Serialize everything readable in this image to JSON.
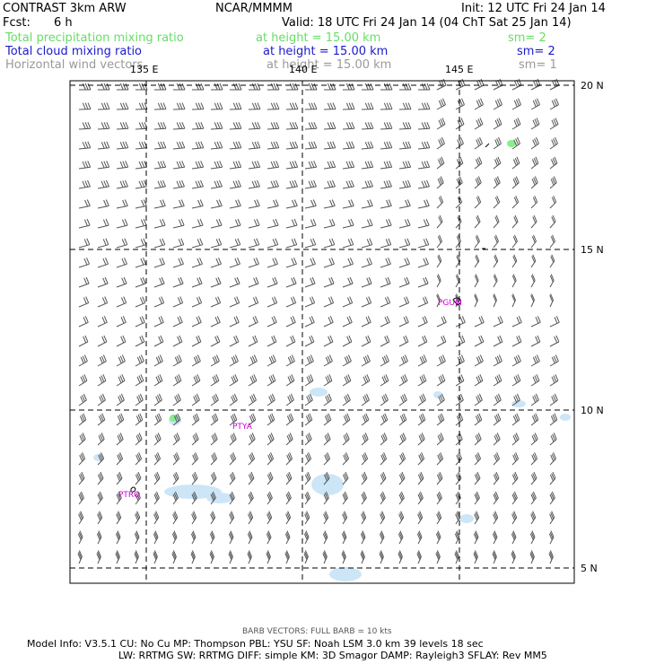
{
  "header": {
    "model_name": "CONTRAST  3km ARW",
    "center": "NCAR/MMMM",
    "init": "Init: 12 UTC Fri 24 Jan 14",
    "fcst_label": "Fcst:",
    "fcst_value": "6 h",
    "valid": "Valid: 18 UTC Fri 24 Jan 14 (04 ChT Sat 25 Jan 14)"
  },
  "fields": [
    {
      "name": "Total precipitation mixing ratio",
      "height": "at height = 15.00 km",
      "sm": "sm= 2",
      "color": "#66dd66"
    },
    {
      "name": "Total cloud mixing ratio",
      "height": "at height = 15.00 km",
      "sm": "sm= 2",
      "color": "#1a1acc"
    },
    {
      "name": "Horizontal wind vectors",
      "height": "at height = 15.00 km",
      "sm": "sm= 1",
      "color": "#999999"
    }
  ],
  "map": {
    "lon_labels": [
      "135 E",
      "140 E",
      "145 E"
    ],
    "lat_labels": [
      "20 N",
      "15 N",
      "10 N",
      "5 N"
    ],
    "stations": [
      "PGUM",
      "PTYA",
      "PTRO"
    ],
    "cloud_color": "#cce6f7",
    "precip_color": "#88ee88"
  },
  "footer": {
    "barb_note": "BARB VECTORS:  FULL BARB = 10 kts",
    "line1": "Model Info: V3.5.1     CU: No Cu     MP: Thompson     PBL: YSU      SF: Noah LSM      3.0 km   39 levels    18 sec",
    "line2": "LW: RRTMG    SW: RRTMG   DIFF: simple KM: 3D Smagor DAMP: Rayleigh3   SFLAY: Rev MM5"
  }
}
